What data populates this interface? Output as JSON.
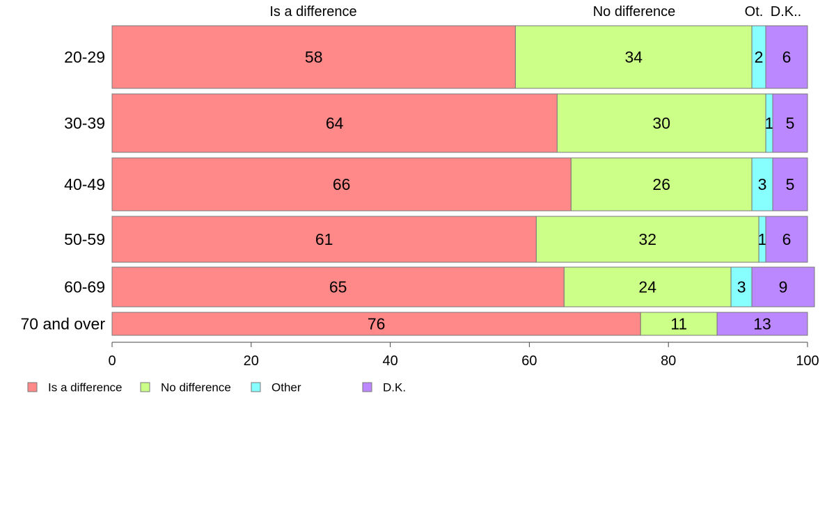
{
  "chart_data": {
    "type": "bar",
    "orientation": "horizontal",
    "stacked": true,
    "categories": [
      "20-29",
      "30-39",
      "40-49",
      "50-59",
      "60-69",
      "70 and over"
    ],
    "series": [
      {
        "name": "Is a difference",
        "color": "#FF8888",
        "values": [
          58,
          64,
          66,
          61,
          65,
          76
        ]
      },
      {
        "name": "No difference",
        "color": "#CCFF88",
        "values": [
          34,
          30,
          26,
          32,
          24,
          11
        ]
      },
      {
        "name": "Other",
        "color": "#88FFFF",
        "values": [
          2,
          1,
          3,
          1,
          3,
          0
        ]
      },
      {
        "name": "D.K.",
        "color": "#BB88FF",
        "values": [
          6,
          5,
          5,
          6,
          9,
          13
        ]
      }
    ],
    "top_labels": [
      "Is a difference",
      "No difference",
      "Ot.",
      "D.K.."
    ],
    "xlim": [
      0,
      100
    ],
    "xticks": [
      0,
      20,
      40,
      60,
      80,
      100
    ],
    "legend_position": "bottom-left",
    "grid": false
  }
}
